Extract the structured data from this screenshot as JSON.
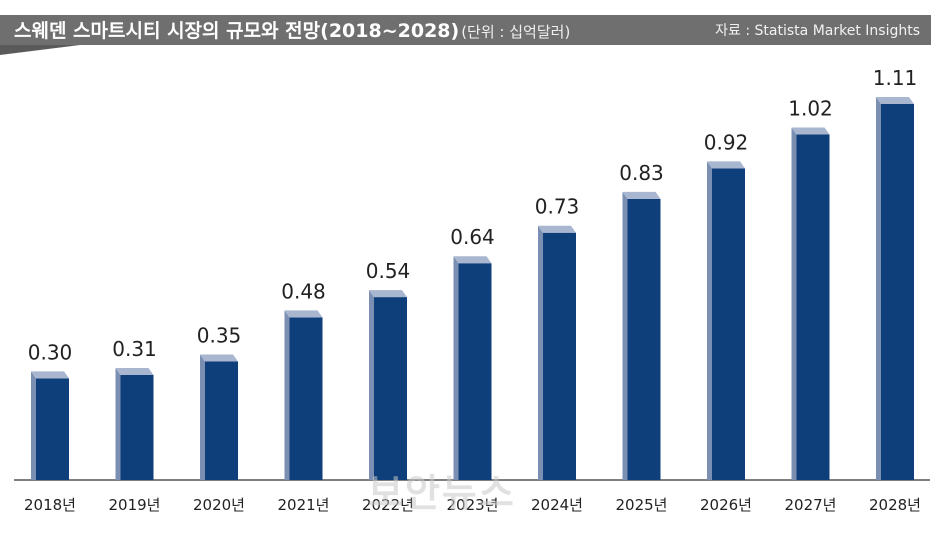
{
  "header": {
    "title": "스웨덴 스마트시티 시장의 규모와 전망(2018~2028)",
    "unit": "(단위 : 십억달러)",
    "source": "자료 : Statista Market Insights"
  },
  "watermark": "보안뉴스",
  "colors": {
    "bar_front": "#0f3f7a",
    "bar_side": "#7b8fb3",
    "bar_top": "#a9b6cf",
    "header": "#6f6f6f"
  },
  "chart_data": {
    "type": "bar",
    "categories": [
      "2018년",
      "2019년",
      "2020년",
      "2021년",
      "2022년",
      "2023년",
      "2024년",
      "2025년",
      "2026년",
      "2027년",
      "2028년"
    ],
    "values": [
      0.3,
      0.31,
      0.35,
      0.48,
      0.54,
      0.64,
      0.73,
      0.83,
      0.92,
      1.02,
      1.11
    ],
    "labels": [
      "0.30",
      "0.31",
      "0.35",
      "0.48",
      "0.54",
      "0.64",
      "0.73",
      "0.83",
      "0.92",
      "1.02",
      "1.11"
    ],
    "ylim": [
      0,
      1.11
    ],
    "grid": false
  }
}
